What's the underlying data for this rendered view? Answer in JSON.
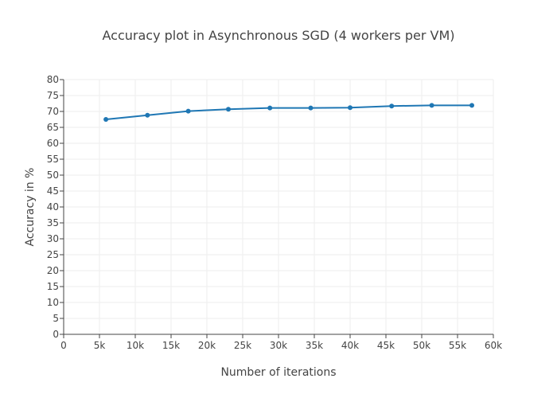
{
  "chart_data": {
    "type": "line",
    "title": "Accuracy plot in Asynchronous SGD (4 workers per VM)",
    "xlabel": "Number of iterations",
    "ylabel": "Accuracy in %",
    "xlim": [
      0,
      60000
    ],
    "ylim": [
      0,
      80
    ],
    "x_ticks": [
      0,
      5000,
      10000,
      15000,
      20000,
      25000,
      30000,
      35000,
      40000,
      45000,
      50000,
      55000,
      60000
    ],
    "x_tick_labels": [
      "0",
      "5k",
      "10k",
      "15k",
      "20k",
      "25k",
      "30k",
      "35k",
      "40k",
      "45k",
      "50k",
      "55k",
      "60k"
    ],
    "y_ticks": [
      0,
      5,
      10,
      15,
      20,
      25,
      30,
      35,
      40,
      45,
      50,
      55,
      60,
      65,
      70,
      75,
      80
    ],
    "y_tick_labels": [
      "0",
      "5",
      "10",
      "15",
      "20",
      "25",
      "30",
      "35",
      "40",
      "45",
      "50",
      "55",
      "60",
      "65",
      "70",
      "75",
      "80"
    ],
    "grid": true,
    "series": [
      {
        "color": "#1f77b4",
        "x": [
          5900,
          11700,
          17400,
          23000,
          28800,
          34500,
          40000,
          45800,
          51400,
          57000
        ],
        "y": [
          67.5,
          68.8,
          70.1,
          70.7,
          71.1,
          71.1,
          71.2,
          71.7,
          71.9,
          71.9
        ]
      }
    ]
  }
}
